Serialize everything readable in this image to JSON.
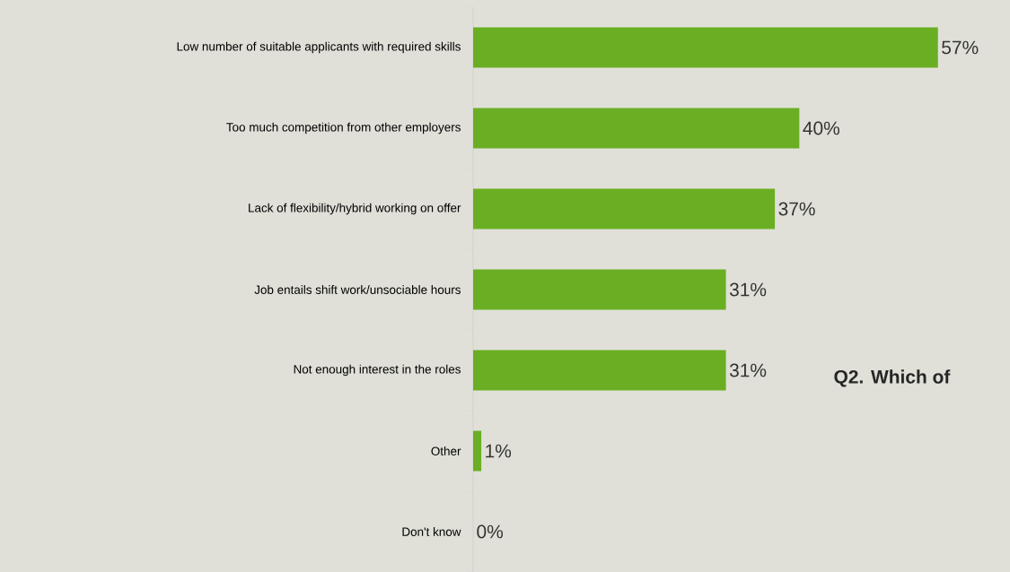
{
  "chart_data": {
    "type": "bar",
    "orientation": "horizontal",
    "categories": [
      "Low number of suitable applicants with required skills",
      "Too much competition from other employers",
      "Lack of flexibility/hybrid working on offer",
      "Job entails shift work/unsociable hours",
      "Not enough interest in the roles",
      "Other",
      "Don't know"
    ],
    "values": [
      57,
      40,
      37,
      31,
      31,
      1,
      0
    ],
    "color": "#6aaf23",
    "value_labels": [
      "57%",
      "40%",
      "37%",
      "31%",
      "31%",
      "1%",
      "0%"
    ],
    "annotations": [
      "Q2. Which of"
    ]
  }
}
